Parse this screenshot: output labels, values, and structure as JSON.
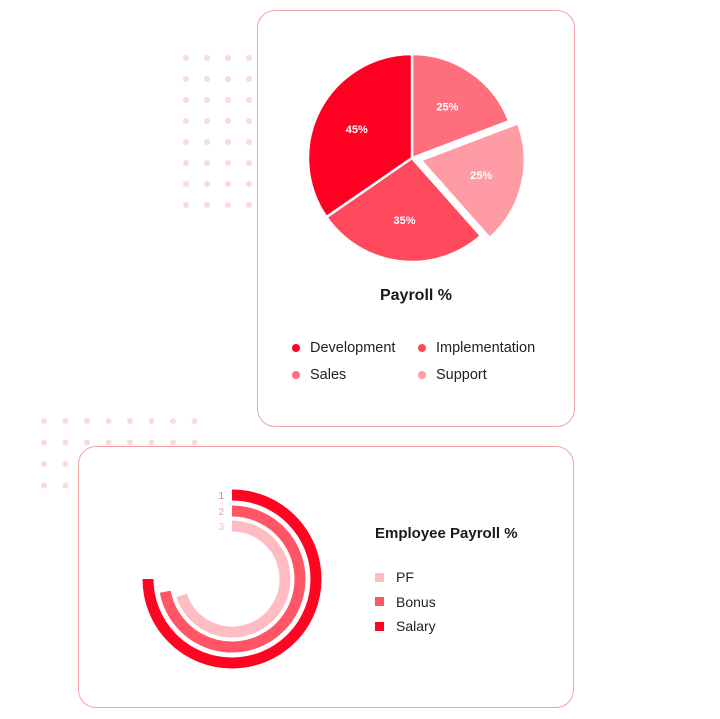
{
  "colors": {
    "development": "#ff0022",
    "implementation": "#ff4a5e",
    "sales": "#ff6e7d",
    "support": "#ff9ba4",
    "pf": "#ffbcc3",
    "bonus": "#ff5566",
    "salary": "#ff0522",
    "border": "#f2a3a8",
    "dots": "#fbdadd",
    "ring_label_1": "#d98088",
    "ring_label_2": "#e3a0a6",
    "ring_label_3": "#ecc3c7"
  },
  "chart_data": [
    {
      "type": "pie",
      "title": "Payroll %",
      "slices": [
        {
          "label": "Sales",
          "value": 25,
          "value_label": "25%",
          "color": "#ff6e7d",
          "exploded": false
        },
        {
          "label": "Support",
          "value": 25,
          "value_label": "25%",
          "color": "#ff9ba4",
          "exploded": true
        },
        {
          "label": "Implementation",
          "value": 35,
          "value_label": "35%",
          "color": "#ff4a5e",
          "exploded": false
        },
        {
          "label": "Development",
          "value": 45,
          "value_label": "45%",
          "color": "#ff0022",
          "exploded": false
        }
      ],
      "legend": [
        {
          "label": "Development",
          "color": "#ff0022"
        },
        {
          "label": "Implementation",
          "color": "#ff4a5e"
        },
        {
          "label": "Sales",
          "color": "#ff6e7d"
        },
        {
          "label": "Support",
          "color": "#ff9ba4"
        }
      ],
      "legend_position": "bottom"
    },
    {
      "type": "radialBar",
      "title": "Employee Payroll %",
      "max": 100,
      "series": [
        {
          "ring_label": "1",
          "name": "Salary",
          "value": 75,
          "color": "#ff0522"
        },
        {
          "ring_label": "2",
          "name": "Bonus",
          "value": 72,
          "color": "#ff5566"
        },
        {
          "ring_label": "3",
          "name": "PF",
          "value": 70,
          "color": "#ffbcc3"
        }
      ],
      "legend": [
        {
          "label": "PF",
          "color": "#ffbcc3"
        },
        {
          "label": "Bonus",
          "color": "#ff5566"
        },
        {
          "label": "Salary",
          "color": "#ff0522"
        }
      ],
      "legend_position": "right"
    }
  ]
}
